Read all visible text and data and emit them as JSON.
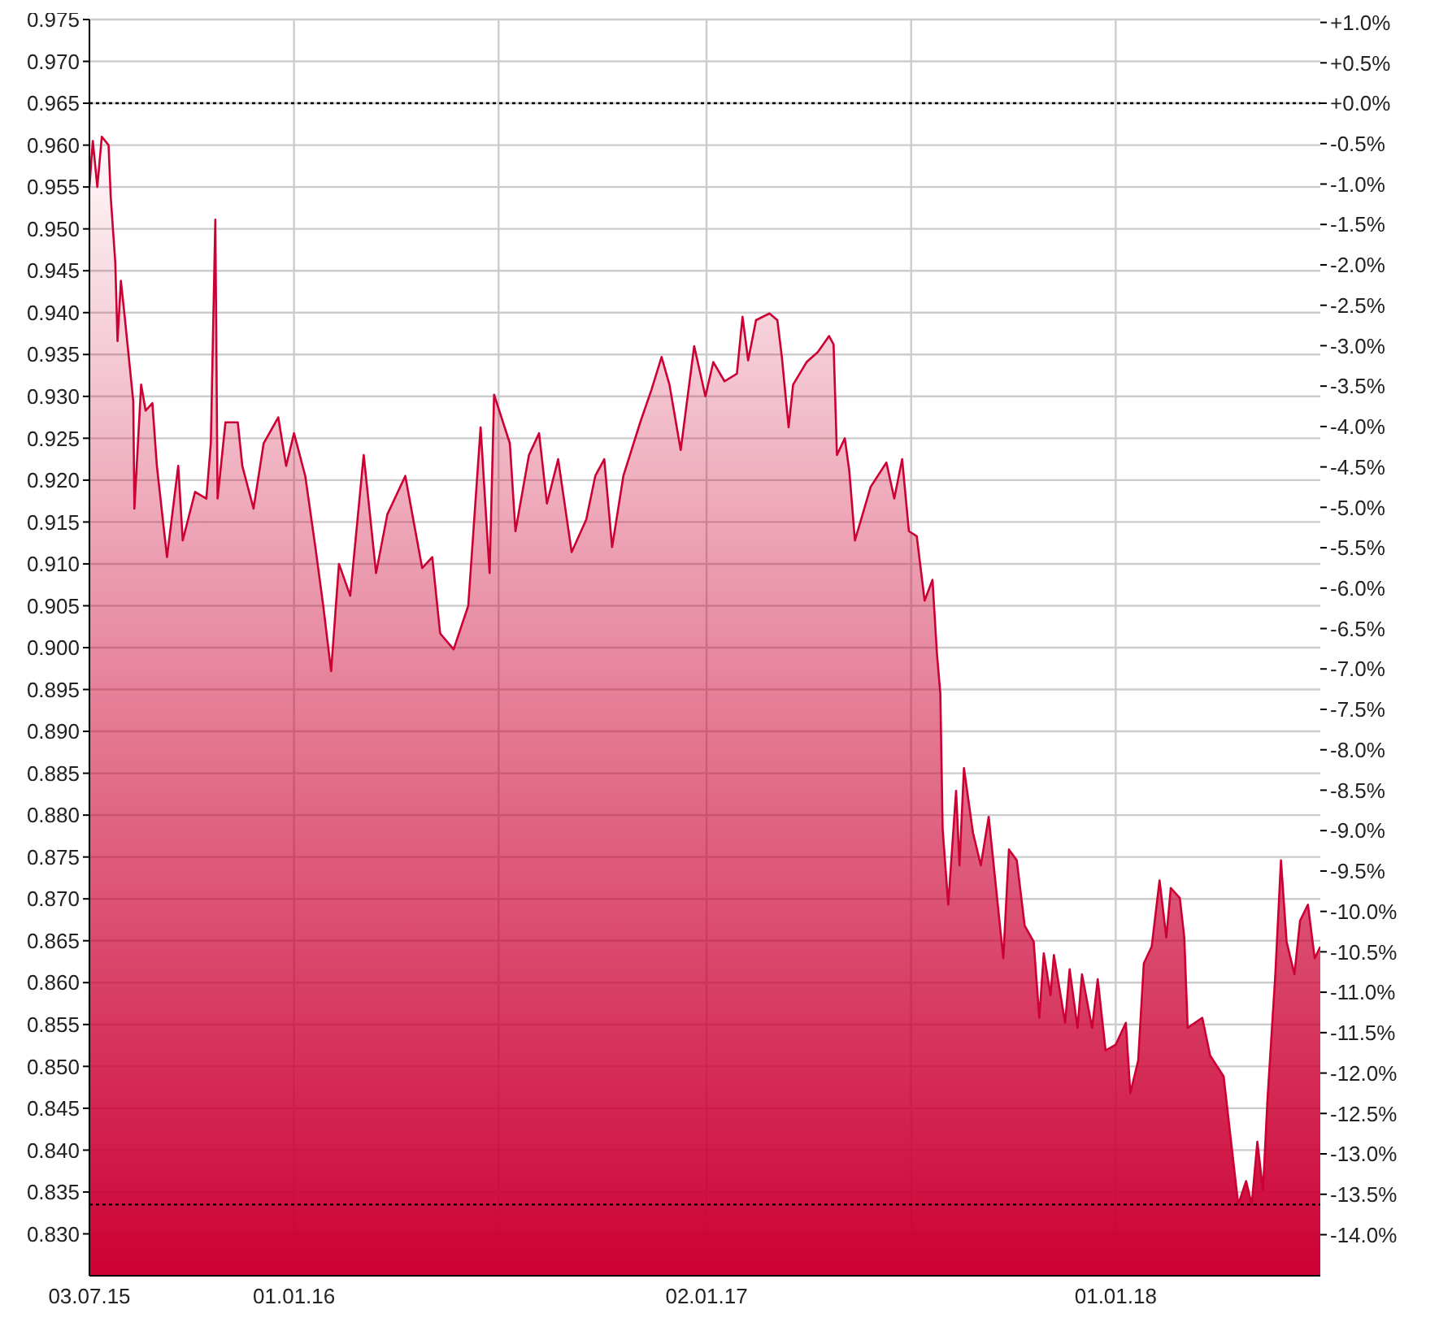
{
  "chart_data": {
    "type": "area",
    "x": [
      "2015-07-03",
      "2015-07-06",
      "2015-07-10",
      "2015-07-14",
      "2015-07-20",
      "2015-07-22",
      "2015-07-26",
      "2015-07-28",
      "2015-07-31",
      "2015-08-03",
      "2015-08-11",
      "2015-08-12",
      "2015-08-18",
      "2015-08-22",
      "2015-08-28",
      "2015-09-01",
      "2015-09-10",
      "2015-09-20",
      "2015-09-24",
      "2015-10-05",
      "2015-10-15",
      "2015-10-19",
      "2015-10-23",
      "2015-10-25",
      "2015-11-01",
      "2015-11-12",
      "2015-11-16",
      "2015-11-26",
      "2015-12-05",
      "2015-12-18",
      "2015-12-25",
      "2016-01-01",
      "2016-01-11",
      "2016-01-20",
      "2016-01-27",
      "2016-02-03",
      "2016-02-10",
      "2016-02-20",
      "2016-03-03",
      "2016-03-14",
      "2016-03-24",
      "2016-04-09",
      "2016-04-24",
      "2016-05-03",
      "2016-05-10",
      "2016-05-22",
      "2016-06-04",
      "2016-06-15",
      "2016-06-23",
      "2016-06-27",
      "2016-07-11",
      "2016-07-16",
      "2016-07-28",
      "2016-08-06",
      "2016-08-13",
      "2016-08-23",
      "2016-09-04",
      "2016-09-17",
      "2016-09-25",
      "2016-10-03",
      "2016-10-10",
      "2016-10-20",
      "2016-11-04",
      "2016-11-14",
      "2016-11-23",
      "2016-11-30",
      "2016-12-10",
      "2016-12-22",
      "2017-01-01",
      "2017-01-08",
      "2017-01-18",
      "2017-01-29",
      "2017-02-03",
      "2017-02-08",
      "2017-02-15",
      "2017-02-27",
      "2017-03-06",
      "2017-03-10",
      "2017-03-16",
      "2017-03-20",
      "2017-04-01",
      "2017-04-11",
      "2017-04-21",
      "2017-04-25",
      "2017-04-28",
      "2017-05-05",
      "2017-05-09",
      "2017-05-14",
      "2017-05-28",
      "2017-06-11",
      "2017-06-18",
      "2017-06-25",
      "2017-07-01",
      "2017-07-08",
      "2017-07-15",
      "2017-07-22",
      "2017-07-26",
      "2017-07-29",
      "2017-07-31",
      "2017-08-05",
      "2017-08-12",
      "2017-08-15",
      "2017-08-19",
      "2017-08-27",
      "2017-09-03",
      "2017-09-10",
      "2017-09-17",
      "2017-09-23",
      "2017-09-28",
      "2017-10-05",
      "2017-10-12",
      "2017-10-20",
      "2017-10-25",
      "2017-10-29",
      "2017-11-04",
      "2017-11-07",
      "2017-11-17",
      "2017-11-21",
      "2017-11-28",
      "2017-12-02",
      "2017-12-11",
      "2017-12-16",
      "2017-12-23",
      "2018-01-01",
      "2018-01-10",
      "2018-01-14",
      "2018-01-21",
      "2018-01-26",
      "2018-02-02",
      "2018-02-09",
      "2018-02-15",
      "2018-02-19",
      "2018-02-27",
      "2018-03-03",
      "2018-03-06",
      "2018-03-19",
      "2018-03-26",
      "2018-04-07",
      "2018-04-20",
      "2018-04-27",
      "2018-05-02",
      "2018-05-07",
      "2018-05-12",
      "2018-05-16",
      "2018-05-23",
      "2018-05-28",
      "2018-06-02",
      "2018-06-09",
      "2018-06-14",
      "2018-06-21",
      "2018-06-27",
      "2018-07-02"
    ],
    "series": [
      {
        "color": "#cc0033",
        "values": [
          0.955,
          0.9605,
          0.955,
          0.961,
          0.96,
          0.9537,
          0.946,
          0.9366,
          0.9438,
          0.94,
          0.9294,
          0.9166,
          0.9314,
          0.9283,
          0.9292,
          0.9217,
          0.9108,
          0.9217,
          0.9128,
          0.9186,
          0.9178,
          0.9244,
          0.9511,
          0.9178,
          0.9269,
          0.9269,
          0.9217,
          0.9166,
          0.9244,
          0.9275,
          0.9217,
          0.9256,
          0.9205,
          0.912,
          0.905,
          0.8972,
          0.91,
          0.9062,
          0.923,
          0.9089,
          0.9159,
          0.9205,
          0.9095,
          0.9108,
          0.9017,
          0.8998,
          0.905,
          0.9263,
          0.9089,
          0.9302,
          0.9244,
          0.9139,
          0.923,
          0.9256,
          0.9172,
          0.9225,
          0.9114,
          0.9153,
          0.9205,
          0.9225,
          0.912,
          0.9205,
          0.9269,
          0.9308,
          0.9347,
          0.9314,
          0.9236,
          0.936,
          0.93,
          0.9341,
          0.9318,
          0.9327,
          0.9395,
          0.9343,
          0.9391,
          0.9399,
          0.9391,
          0.9347,
          0.9263,
          0.9314,
          0.9341,
          0.9353,
          0.9372,
          0.9362,
          0.923,
          0.925,
          0.9211,
          0.9128,
          0.9192,
          0.9221,
          0.9178,
          0.9225,
          0.9139,
          0.9133,
          0.9056,
          0.9081,
          0.8992,
          0.8945,
          0.8784,
          0.8693,
          0.8829,
          0.874,
          0.8856,
          0.8779,
          0.874,
          0.8798,
          0.8707,
          0.8629,
          0.8759,
          0.8746,
          0.8668,
          0.8649,
          0.8558,
          0.8635,
          0.8585,
          0.8633,
          0.8552,
          0.8616,
          0.8546,
          0.861,
          0.8546,
          0.8604,
          0.8519,
          0.8526,
          0.8552,
          0.8468,
          0.8507,
          0.8623,
          0.8643,
          0.8722,
          0.8654,
          0.8713,
          0.8701,
          0.8654,
          0.8546,
          0.8558,
          0.8513,
          0.8488,
          0.8335,
          0.8363,
          0.8335,
          0.841,
          0.8352,
          0.846,
          0.861,
          0.8746,
          0.8649,
          0.861,
          0.8674,
          0.8693,
          0.8629,
          0.8643
        ]
      }
    ],
    "xlim": [
      "2015-07-03",
      "2018-07-02"
    ],
    "xticks": [
      {
        "value": "2015-07-03",
        "label": "03.07.15"
      },
      {
        "value": "2016-01-01",
        "label": "01.01.16"
      },
      {
        "value": "2016-07-01",
        "label": null
      },
      {
        "value": "2017-01-02",
        "label": "02.01.17"
      },
      {
        "value": "2017-07-03",
        "label": null
      },
      {
        "value": "2018-01-01",
        "label": "01.01.18"
      }
    ],
    "ylim": [
      0.825,
      0.975
    ],
    "yticks": [
      {
        "value": 0.83,
        "label": "0.830"
      },
      {
        "value": 0.835,
        "label": "0.835"
      },
      {
        "value": 0.84,
        "label": "0.840"
      },
      {
        "value": 0.845,
        "label": "0.845"
      },
      {
        "value": 0.85,
        "label": "0.850"
      },
      {
        "value": 0.855,
        "label": "0.855"
      },
      {
        "value": 0.86,
        "label": "0.860"
      },
      {
        "value": 0.865,
        "label": "0.865"
      },
      {
        "value": 0.87,
        "label": "0.870"
      },
      {
        "value": 0.875,
        "label": "0.875"
      },
      {
        "value": 0.88,
        "label": "0.880"
      },
      {
        "value": 0.885,
        "label": "0.885"
      },
      {
        "value": 0.89,
        "label": "0.890"
      },
      {
        "value": 0.895,
        "label": "0.895"
      },
      {
        "value": 0.9,
        "label": "0.900"
      },
      {
        "value": 0.905,
        "label": "0.905"
      },
      {
        "value": 0.91,
        "label": "0.910"
      },
      {
        "value": 0.915,
        "label": "0.915"
      },
      {
        "value": 0.92,
        "label": "0.920"
      },
      {
        "value": 0.925,
        "label": "0.925"
      },
      {
        "value": 0.93,
        "label": "0.930"
      },
      {
        "value": 0.935,
        "label": "0.935"
      },
      {
        "value": 0.94,
        "label": "0.940"
      },
      {
        "value": 0.945,
        "label": "0.945"
      },
      {
        "value": 0.95,
        "label": "0.950"
      },
      {
        "value": 0.955,
        "label": "0.955"
      },
      {
        "value": 0.96,
        "label": "0.960"
      },
      {
        "value": 0.965,
        "label": "0.965"
      },
      {
        "value": 0.97,
        "label": "0.970"
      },
      {
        "value": 0.975,
        "label": "0.975"
      }
    ],
    "y2lim": [
      -14.508,
      1.036
    ],
    "y2ticks": [
      {
        "value": 1,
        "label": "+1.0%"
      },
      {
        "value": 0.5,
        "label": "+0.5%"
      },
      {
        "value": 0,
        "label": "+0.0%"
      },
      {
        "value": -0.5,
        "label": "-0.5%"
      },
      {
        "value": -1,
        "label": "-1.0%"
      },
      {
        "value": -1.5,
        "label": "-1.5%"
      },
      {
        "value": -2,
        "label": "-2.0%"
      },
      {
        "value": -2.5,
        "label": "-2.5%"
      },
      {
        "value": -3,
        "label": "-3.0%"
      },
      {
        "value": -3.5,
        "label": "-3.5%"
      },
      {
        "value": -4,
        "label": "-4.0%"
      },
      {
        "value": -4.5,
        "label": "-4.5%"
      },
      {
        "value": -5,
        "label": "-5.0%"
      },
      {
        "value": -5.5,
        "label": "-5.5%"
      },
      {
        "value": -6,
        "label": "-6.0%"
      },
      {
        "value": -6.5,
        "label": "-6.5%"
      },
      {
        "value": -7,
        "label": "-7.0%"
      },
      {
        "value": -7.5,
        "label": "-7.5%"
      },
      {
        "value": -8,
        "label": "-8.0%"
      },
      {
        "value": -8.5,
        "label": "-8.5%"
      },
      {
        "value": -9,
        "label": "-9.0%"
      },
      {
        "value": -9.5,
        "label": "-9.5%"
      },
      {
        "value": -10,
        "label": "-10.0%"
      },
      {
        "value": -10.5,
        "label": "-10.5%"
      },
      {
        "value": -11,
        "label": "-11.0%"
      },
      {
        "value": -11.5,
        "label": "-11.5%"
      },
      {
        "value": -12,
        "label": "-12.0%"
      },
      {
        "value": -12.5,
        "label": "-12.5%"
      },
      {
        "value": -13,
        "label": "-13.0%"
      },
      {
        "value": -13.5,
        "label": "-13.5%"
      },
      {
        "value": -14,
        "label": "-14.0%"
      }
    ],
    "ref_lines": [
      {
        "axis": "y",
        "value": 0.965,
        "color": "#000000",
        "line_style": "dotted"
      },
      {
        "axis": "y",
        "value": 0.8335,
        "color": "#000000",
        "line_style": "dotted"
      }
    ],
    "grid": true
  }
}
